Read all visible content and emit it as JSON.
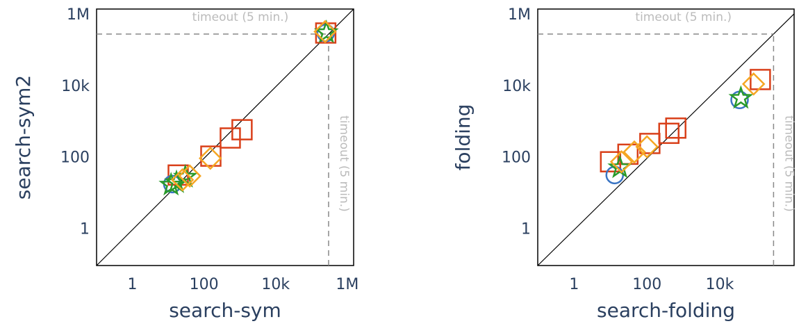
{
  "chart_data": [
    {
      "type": "scatter",
      "x_label": "search-sym",
      "y_label": "search-sym2",
      "log_x": true,
      "log_y": true,
      "xlim": [
        0.1,
        1500000
      ],
      "ylim": [
        0.1,
        1500000
      ],
      "xticks": [
        1,
        100,
        {
          "value": 10000,
          "label": "10k"
        },
        {
          "value": 1000000,
          "label": "1M"
        }
      ],
      "yticks": [
        1,
        100,
        {
          "value": 10000,
          "label": "10k"
        },
        {
          "value": 1000000,
          "label": "1M"
        }
      ],
      "x_timeout": {
        "value": 300000,
        "label": "timeout (5 min.)"
      },
      "y_timeout": {
        "value": 300000,
        "label": "timeout (5 min.)"
      },
      "series": [
        {
          "marker": "square",
          "color": "#d9401a",
          "x": [
            19,
            155,
            540,
            1150,
            250000
          ],
          "y": [
            34,
            115,
            370,
            630,
            320000
          ]
        },
        {
          "marker": "circle",
          "color": "#3a75c4",
          "x": [
            13,
            250000
          ],
          "y": [
            19,
            320000
          ]
        },
        {
          "marker": "star",
          "color": "#2a9a2a",
          "x": [
            17,
            12,
            30,
            260000
          ],
          "y": [
            21,
            18,
            30,
            330000
          ]
        },
        {
          "marker": "diamond",
          "color": "#f5a623",
          "x": [
            25,
            40,
            150,
            240000
          ],
          "y": [
            25,
            32,
            100,
            350000
          ]
        }
      ]
    },
    {
      "type": "scatter",
      "x_label": "search-folding",
      "y_label": "folding",
      "log_x": true,
      "log_y": true,
      "xlim": [
        0.1,
        1100000
      ],
      "ylim": [
        0.1,
        1500000
      ],
      "xticks": [
        1,
        100,
        {
          "value": 10000,
          "label": "10k"
        }
      ],
      "yticks": [
        1,
        100,
        {
          "value": 10000,
          "label": "10k"
        },
        {
          "value": 1000000,
          "label": "1M"
        }
      ],
      "x_timeout": {
        "value": 300000,
        "label": "timeout (5 min.)"
      },
      "y_timeout": {
        "value": 300000,
        "label": "timeout (5 min.)"
      },
      "series": [
        {
          "marker": "square",
          "color": "#d9401a",
          "x": [
            10,
            30,
            120,
            400,
            620,
            130000
          ],
          "y": [
            80,
            130,
            260,
            500,
            700,
            16000
          ]
        },
        {
          "marker": "circle",
          "color": "#3a75c4",
          "x": [
            13,
            35000
          ],
          "y": [
            34,
            4300
          ]
        },
        {
          "marker": "star",
          "color": "#2a9a2a",
          "x": [
            18,
            38000
          ],
          "y": [
            55,
            4800
          ]
        },
        {
          "marker": "diamond",
          "color": "#f5a623",
          "x": [
            20,
            45,
            100,
            85000
          ],
          "y": [
            80,
            150,
            210,
            12000
          ]
        }
      ]
    }
  ]
}
